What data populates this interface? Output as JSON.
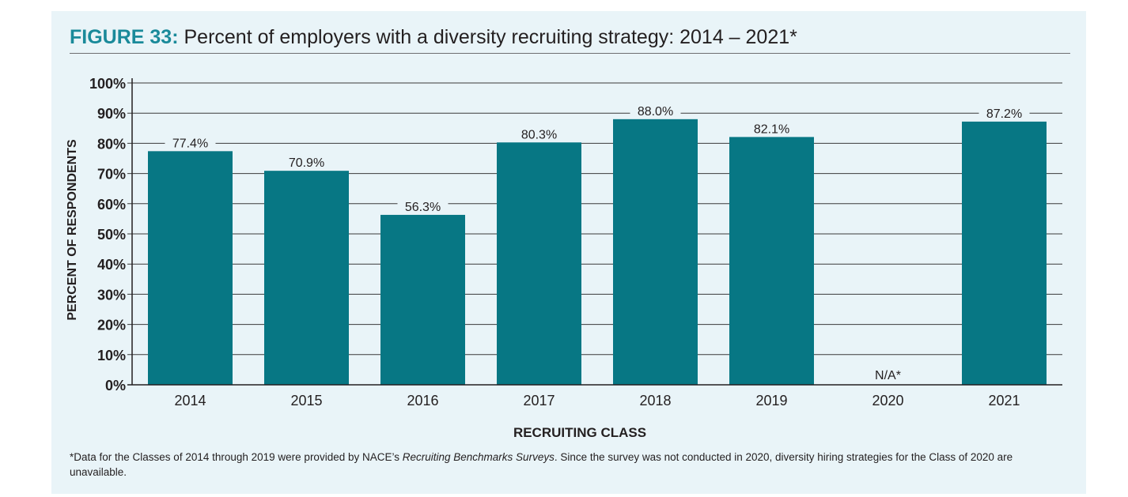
{
  "figure_label": "FIGURE 33:",
  "figure_title": "Percent of employers with a diversity recruiting strategy: 2014 – 2021*",
  "footnote": {
    "part1": "*Data for the Classes of 2014 through 2019 were provided by NACE’s ",
    "italic": "Recruiting Benchmarks Surveys",
    "part2": ". Since the survey was not conducted in 2020, diversity hiring strategies for the Class of 2020 are unavailable."
  },
  "colors": {
    "bar": "#077784",
    "title_accent": "#1a8a9a",
    "panel_background": "#e9f4f8"
  },
  "chart_data": {
    "type": "bar",
    "title": "Percent of employers with a diversity recruiting strategy: 2014 – 2021*",
    "xlabel": "RECRUITING CLASS",
    "ylabel": "PERCENT OF RESPONDENTS",
    "categories": [
      "2014",
      "2015",
      "2016",
      "2017",
      "2018",
      "2019",
      "2020",
      "2021"
    ],
    "values": [
      77.4,
      70.9,
      56.3,
      80.3,
      88.0,
      82.1,
      null,
      87.2
    ],
    "data_labels": [
      "77.4%",
      "70.9%",
      "56.3%",
      "80.3%",
      "88.0%",
      "82.1%",
      "N/A*",
      "87.2%"
    ],
    "yticks": [
      "0%",
      "10%",
      "20%",
      "30%",
      "40%",
      "50%",
      "60%",
      "70%",
      "80%",
      "90%",
      "100%"
    ],
    "ylim": [
      0,
      100
    ],
    "grid": true,
    "legend": "none"
  }
}
